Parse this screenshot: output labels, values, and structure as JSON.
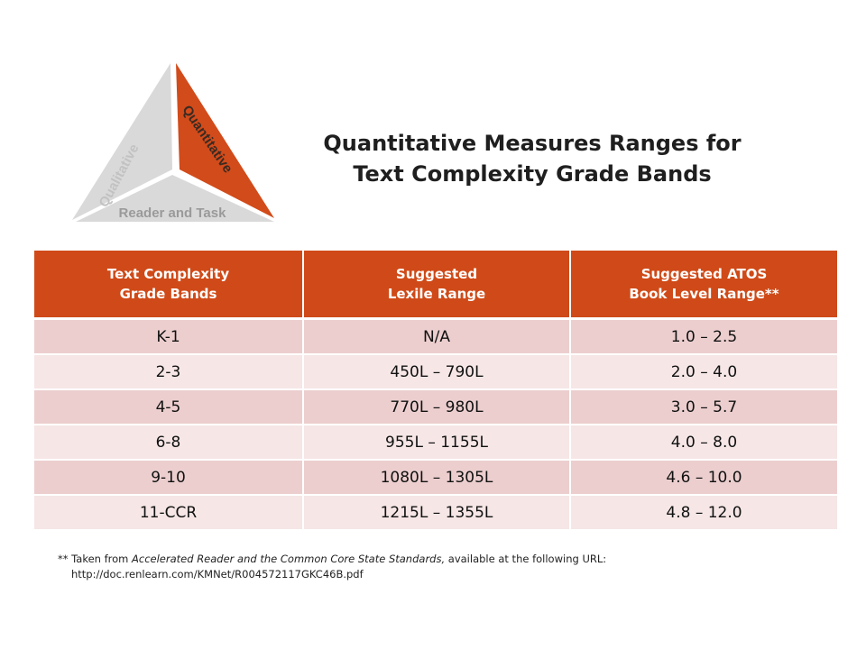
{
  "logo": {
    "left_label": "Qualitative",
    "right_label": "Quantitative",
    "bottom_label": "Reader and Task",
    "colors": {
      "gray": "#d9d9d9",
      "orange": "#d24b1a",
      "label_gray": "#c2c2c2"
    }
  },
  "title": {
    "line1": "Quantitative Measures Ranges for",
    "line2": "Text Complexity Grade Bands"
  },
  "table": {
    "headers": [
      {
        "line1": "Text Complexity",
        "line2": "Grade Bands"
      },
      {
        "line1": "Suggested",
        "line2": "Lexile Range"
      },
      {
        "line1": "Suggested ATOS",
        "line2": "Book Level Range**"
      }
    ],
    "rows": [
      [
        "K-1",
        "N/A",
        "1.0 – 2.5"
      ],
      [
        "2-3",
        "450L – 790L",
        "2.0 – 4.0"
      ],
      [
        "4-5",
        "770L – 980L",
        "3.0 – 5.7"
      ],
      [
        "6-8",
        "955L – 1155L",
        "4.0 – 8.0"
      ],
      [
        "9-10",
        "1080L – 1305L",
        "4.6 – 10.0"
      ],
      [
        "11-CCR",
        "1215L – 1355L",
        "4.8 – 12.0"
      ]
    ],
    "colors": {
      "header": "#cf4a18",
      "row_dark": "#eccece",
      "row_light": "#f6e6e6"
    }
  },
  "footnote": {
    "prefix": "** Taken from ",
    "source": "Accelerated Reader and the Common Core State Standards,",
    "suffix": " available at the following URL:",
    "url": "http://doc.renlearn.com/KMNet/R004572117GKC46B.pdf"
  }
}
